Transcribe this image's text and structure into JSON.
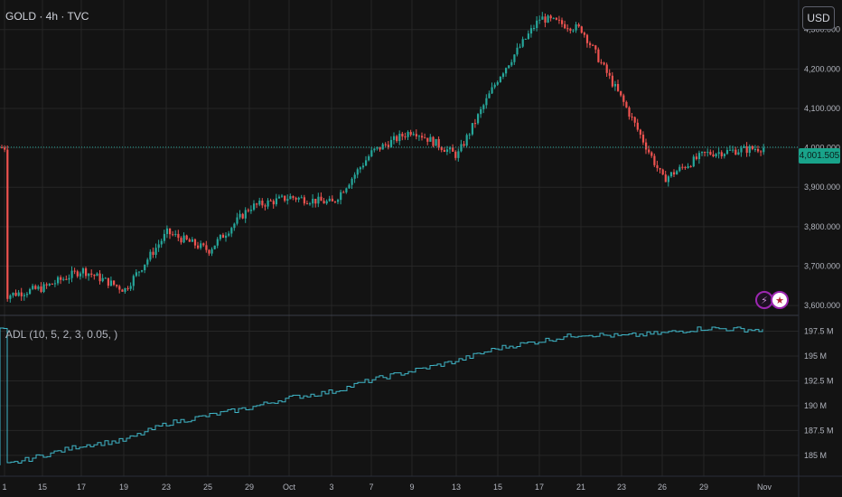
{
  "header": {
    "title": "GOLD · 4h · TVC",
    "currency_button": "USD"
  },
  "indicator": {
    "label": "ADL (10, 5, 2, 3, 0.05, )"
  },
  "last_price": {
    "label": "4,001.505",
    "value": 4001.505
  },
  "colors": {
    "up": "#26a69a",
    "down": "#ef5350",
    "indicator": "#3fb6c8",
    "price_line": "#26a69a",
    "grid": "#262626",
    "background": "#131313"
  },
  "events": [
    {
      "icon": "lightning-icon"
    },
    {
      "icon": "us-flag-icon"
    }
  ],
  "chart_data": [
    {
      "type": "candlestick",
      "title": "GOLD · 4h · TVC",
      "ylim": [
        3575,
        4375
      ],
      "y_ticks": [
        3600,
        3700,
        3800,
        3900,
        4000,
        4100,
        4200,
        4300
      ],
      "y_tick_labels": [
        "3,600.000",
        "3,700.000",
        "3,800.000",
        "3,900.000",
        "4,000.000",
        "4,100.000",
        "4,200.000",
        "4,300.000"
      ],
      "x_tick_labels": [
        "1",
        "15",
        "17",
        "19",
        "23",
        "25",
        "29",
        "Oct",
        "3",
        "7",
        "9",
        "13",
        "15",
        "17",
        "21",
        "23",
        "26",
        "29",
        "Nov"
      ],
      "path": [
        [
          "1",
          3625
        ],
        [
          "15",
          3645
        ],
        [
          "17",
          3690
        ],
        [
          "19",
          3640
        ],
        [
          "23",
          3785
        ],
        [
          "25",
          3740
        ],
        [
          "29",
          3850
        ],
        [
          "Oct",
          3875
        ],
        [
          "3",
          3860
        ],
        [
          "7",
          3990
        ],
        [
          "9",
          4045
        ],
        [
          "13",
          3980
        ],
        [
          "15",
          4180
        ],
        [
          "17",
          4330
        ],
        [
          "21",
          4300
        ],
        [
          "23",
          4120
        ],
        [
          "26",
          3920
        ],
        [
          "29",
          3985
        ],
        [
          "Nov",
          4001
        ]
      ],
      "grid": true
    },
    {
      "type": "line",
      "name": "ADL (10, 5, 2, 3, 0.05, )",
      "ylim": [
        182.9,
        199
      ],
      "y_ticks": [
        185,
        187.5,
        190,
        192.5,
        195,
        197.5
      ],
      "y_tick_labels": [
        "185 M",
        "187.5 M",
        "190 M",
        "192.5 M",
        "195 M",
        "197.5 M"
      ],
      "x": [
        "1",
        "15",
        "17",
        "19",
        "23",
        "25",
        "29",
        "Oct",
        "3",
        "7",
        "9",
        "13",
        "15",
        "17",
        "21",
        "23",
        "26",
        "29",
        "Nov"
      ],
      "values": [
        184.0,
        185.0,
        186.0,
        186.5,
        188.2,
        189.0,
        189.8,
        190.8,
        191.4,
        192.6,
        193.5,
        194.5,
        195.8,
        196.5,
        197.2,
        197.0,
        197.3,
        197.8,
        197.6
      ],
      "grid": true
    }
  ]
}
